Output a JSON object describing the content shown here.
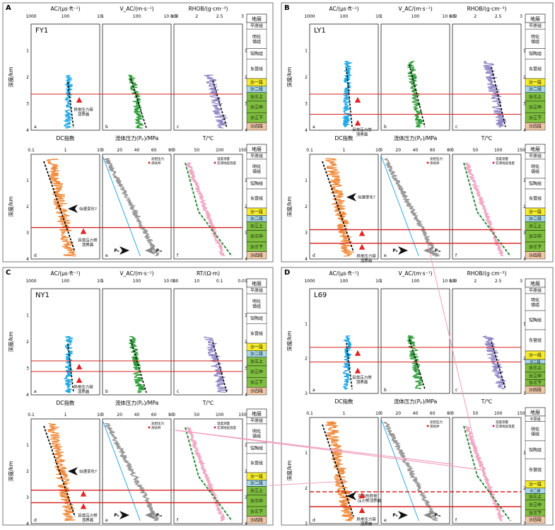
{
  "panels": [
    {
      "letter": "A",
      "well": "FY1",
      "top_headers": [
        "AC/(μs·ft⁻¹)",
        "V_AC/(m·s⁻¹)",
        "RHOB/(g·cm⁻³)"
      ],
      "top_ticks": [
        [
          "1000",
          "100",
          "10"
        ],
        [
          "1",
          "100",
          "10 000"
        ],
        [
          "1.5",
          "2",
          "2.5",
          "3"
        ]
      ],
      "bottom_headers": [
        "DC指数",
        "流体压力(Pₚ)/MPa",
        "T/℃"
      ],
      "bottom_ticks": [
        [
          "0.1",
          "1",
          "10"
        ],
        [
          "0",
          "20",
          "40",
          "60",
          "80"
        ],
        [
          "0",
          "50",
          "100",
          "150"
        ]
      ],
      "strat_header": "地层",
      "strata": [
        "平原组",
        "明化镇组",
        "馆陶组",
        "东营组",
        "沙一段",
        "沙二段",
        "沙三上",
        "沙三中",
        "沙三下",
        "沙四段"
      ],
      "depth_label": "深度/km",
      "depth_ticks": [
        "1",
        "2",
        "3",
        "4"
      ],
      "sub_labels_top": [
        "a",
        "b",
        "c"
      ],
      "sub_labels_bottom": [
        "d",
        "e",
        "f"
      ],
      "ann_top": "异常压力带\n顶界面",
      "ann_bottom_1": "似速变化?",
      "ann_bottom_2": "异常压力带\n顶界面",
      "legend_e": [
        "泥岩压力",
        "测试井"
      ],
      "legend_f": [
        "温度测量",
        "实测地层温度"
      ],
      "pp_label": "Pₕ",
      "pw_label": "Pₘ"
    },
    {
      "letter": "B",
      "well": "LY1",
      "top_headers": [
        "AC/(μs·ft⁻¹)",
        "V_AC/(m·s⁻¹)",
        "RHOB/(g·cm⁻³)"
      ],
      "top_ticks": [
        [
          "1000",
          "100",
          "10"
        ],
        [
          "1",
          "100",
          "10 000"
        ],
        [
          "1.5",
          "2",
          "2.5",
          "3"
        ]
      ],
      "bottom_headers": [
        "DC指数",
        "流体压力(Pₚ)/MPa",
        "T/℃"
      ],
      "bottom_ticks": [
        [
          "0.1",
          "1",
          "10"
        ],
        [
          "0",
          "20",
          "40",
          "60",
          "80"
        ],
        [
          "0",
          "50",
          "100",
          "150"
        ]
      ],
      "strat_header": "地层",
      "strata": [
        "平原组",
        "明化镇组",
        "馆陶组",
        "东营组",
        "沙一段",
        "沙二段",
        "沙三上",
        "沙三中",
        "沙三下",
        "沙四段"
      ],
      "depth_label": "深度/km",
      "depth_ticks": [
        "1",
        "2",
        "3",
        "4"
      ],
      "sub_labels_top": [
        "a",
        "b",
        "c"
      ],
      "sub_labels_bottom": [
        "d",
        "e",
        "f"
      ],
      "ann_top": "异常压力带\n顶界面",
      "ann_bottom_1": "似速变化?",
      "ann_bottom_2": "异常压力带\n顶界面",
      "legend_e": [
        "泥岩压力",
        "测试井"
      ],
      "legend_f": [
        "温度测量",
        "实测地层温度"
      ],
      "pp_label": "Pₕ",
      "pw_label": "Pₘ"
    },
    {
      "letter": "C",
      "well": "NY1",
      "top_headers": [
        "AC/(μs·ft⁻¹)",
        "V_AC/(m·s⁻¹)",
        "RT/(Ω·m)"
      ],
      "top_ticks": [
        [
          "1000",
          "100",
          "10"
        ],
        [
          "1",
          "100",
          "10 000"
        ],
        [
          "1",
          "10",
          "0.1",
          "0.01"
        ]
      ],
      "bottom_headers": [
        "DC指数",
        "流体压力(Pₚ)/MPa",
        "T/℃"
      ],
      "bottom_ticks": [
        [
          "0.1",
          "1",
          "10"
        ],
        [
          "0",
          "20",
          "40",
          "60",
          "80"
        ],
        [
          "0",
          "50",
          "100",
          "150"
        ]
      ],
      "strat_header": "地层",
      "strata": [
        "平原组",
        "明化镇组",
        "馆陶组",
        "东营组",
        "沙一段",
        "沙二段",
        "沙三上",
        "沙三中",
        "沙三下",
        "沙四段"
      ],
      "depth_label": "深度/km",
      "depth_ticks": [
        "1",
        "2",
        "3",
        "4"
      ],
      "sub_labels_top": [
        "a",
        "b",
        "c"
      ],
      "sub_labels_bottom": [
        "d",
        "e",
        "f"
      ],
      "ann_top": "异常压力带\n顶界面",
      "ann_bottom_1": "似速变化?",
      "ann_bottom_2": "异常压力带\n顶界面",
      "legend_e": [
        "泥岩压力",
        "测试井"
      ],
      "legend_f": [
        "温度测量",
        "实测地层温度"
      ],
      "pp_label": "Pₕ",
      "pw_label": "Pₘ"
    },
    {
      "letter": "D",
      "well": "L69",
      "top_headers": [
        "AC/(μs·ft⁻¹)",
        "V_AC/(m·s⁻¹)",
        "RHOB/(g·cm⁻³)"
      ],
      "top_ticks": [
        [
          "1000",
          "100",
          "10"
        ],
        [
          "1",
          "100",
          "10 000"
        ],
        [
          "1.5",
          "2",
          "2.5",
          "3"
        ]
      ],
      "bottom_headers": [
        "DC指数",
        "流体压力(Pₚ)/MPa",
        "T/℃"
      ],
      "bottom_ticks": [
        [
          "0.1",
          "1",
          "10"
        ],
        [
          "0",
          "20",
          "40",
          "60",
          "80"
        ],
        [
          "0",
          "50",
          "100",
          "150"
        ]
      ],
      "strat_header": "地层",
      "strata": [
        "平原组",
        "明化镇组",
        "馆陶组",
        "东营组",
        "沙一段",
        "沙二段",
        "沙三上",
        "沙三中",
        "沙三下",
        "沙四段"
      ],
      "depth_label": "深度/km",
      "depth_ticks": [
        "1",
        "2",
        "3"
      ],
      "sub_labels_top": [
        "a",
        "b",
        "c"
      ],
      "sub_labels_bottom": [
        "d",
        "e",
        "f"
      ],
      "ann_top": "异常压力带\n顶界面",
      "ann_bottom_1": "可能的异常\n压力带顶界面",
      "ann_bottom_2": "异常压力带\n顶界面",
      "legend_e": [
        "泥岩压力",
        "测试井"
      ],
      "legend_f": [
        "温度测量",
        "实测地层温度"
      ],
      "pp_label": "Pₕ",
      "pw_label": "Pₘ"
    }
  ],
  "colors": {
    "ac": "#1ba8e6",
    "vac": "#2e9e3a",
    "rhob": "#8f86c6",
    "dc": "#f08a3a",
    "pp": "#999999",
    "temp": "#f2a7c3",
    "trend": "#000000",
    "redline": "#d62020",
    "marker": "#e42424",
    "hydro": "#2aa8e0",
    "tempfit": "#2e8b3c",
    "strat_yellow": "#f6ec2e",
    "strat_blue": "#a8d8ea",
    "strat_green": "#7fbf3f",
    "strat_peach": "#f0c8a8",
    "link": "#f0a0c0"
  }
}
